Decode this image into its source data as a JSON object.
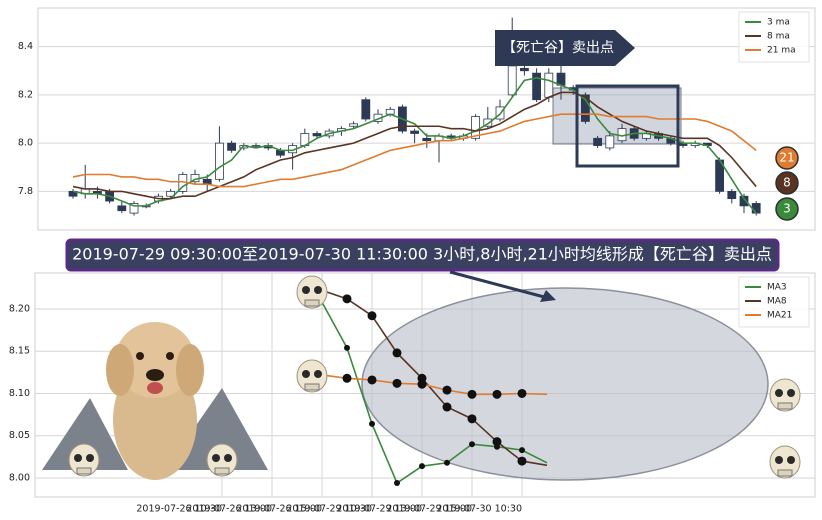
{
  "chart_data": [
    {
      "type": "candlestick",
      "xlim": [
        -2.87,
        60.82
      ],
      "ylim": [
        7.64,
        8.56
      ],
      "yticks": [
        7.8,
        {
          "value": 8.0,
          "label": "8.0"
        },
        8.2,
        8.4
      ],
      "grid": true,
      "legend": "upper right",
      "annotation": "【死亡谷】卖出点",
      "up_color": "#ffffff",
      "down_color": "#2d3a55",
      "open": [
        7.8,
        7.79,
        7.8,
        7.8,
        7.74,
        7.71,
        7.74,
        7.76,
        7.78,
        7.8,
        7.84,
        7.85,
        7.85,
        8.0,
        7.98,
        7.99,
        7.99,
        7.97,
        7.96,
        7.99,
        8.04,
        8.03,
        8.05,
        8.07,
        8.18,
        8.09,
        8.12,
        8.15,
        8.05,
        8.02,
        8.01,
        8.03,
        8.02,
        8.02,
        8.07,
        8.1,
        8.2,
        8.31,
        8.29,
        8.19,
        8.29,
        8.23,
        8.2,
        8.02,
        7.98,
        8.01,
        8.06,
        8.02,
        8.04,
        8.02,
        8.0,
        7.99,
        8.0,
        7.93,
        7.8,
        7.78,
        7.75
      ],
      "high": [
        7.81,
        7.91,
        7.82,
        7.81,
        7.76,
        7.76,
        7.75,
        7.79,
        7.81,
        7.88,
        7.89,
        7.87,
        8.07,
        8.01,
        8.0,
        8.0,
        8.0,
        7.98,
        8.0,
        8.06,
        8.05,
        8.06,
        8.07,
        8.09,
        8.19,
        8.14,
        8.15,
        8.16,
        8.06,
        8.04,
        8.04,
        8.04,
        8.04,
        8.12,
        8.15,
        8.18,
        8.52,
        8.42,
        8.31,
        8.31,
        8.32,
        8.24,
        8.21,
        8.03,
        8.05,
        8.08,
        8.07,
        8.05,
        8.05,
        8.03,
        8.01,
        8.01,
        8.0,
        7.94,
        7.81,
        7.79,
        7.76
      ],
      "low": [
        7.77,
        7.77,
        7.77,
        7.75,
        7.71,
        7.7,
        7.73,
        7.75,
        7.77,
        7.79,
        7.83,
        7.8,
        7.84,
        7.96,
        7.97,
        7.98,
        7.97,
        7.94,
        7.89,
        7.98,
        8.02,
        8.02,
        8.03,
        8.06,
        8.09,
        8.08,
        8.11,
        8.04,
        8.0,
        7.98,
        7.92,
        8.01,
        8.01,
        8.01,
        8.06,
        8.09,
        8.19,
        8.28,
        8.17,
        8.17,
        8.18,
        8.2,
        8.08,
        7.98,
        7.97,
        8.0,
        8.01,
        8.01,
        8.01,
        7.99,
        7.98,
        7.98,
        7.98,
        7.79,
        7.75,
        7.71,
        7.7
      ],
      "close": [
        7.78,
        7.81,
        7.79,
        7.76,
        7.72,
        7.75,
        7.74,
        7.78,
        7.8,
        7.87,
        7.87,
        7.83,
        8.0,
        7.97,
        7.99,
        7.99,
        7.98,
        7.95,
        7.99,
        8.04,
        8.03,
        8.05,
        8.06,
        8.08,
        8.1,
        8.12,
        8.14,
        8.05,
        8.04,
        8.01,
        8.03,
        8.02,
        8.03,
        8.11,
        8.1,
        8.15,
        8.32,
        8.3,
        8.18,
        8.29,
        8.24,
        8.22,
        8.09,
        7.99,
        8.03,
        8.06,
        8.02,
        8.04,
        8.02,
        8.0,
        7.99,
        8.0,
        7.99,
        7.8,
        7.77,
        7.74,
        7.71
      ],
      "series": [
        {
          "name": "3 ma",
          "color": "#3a8a3c",
          "end_label": "3",
          "values": [
            7.8,
            7.79,
            7.79,
            7.78,
            7.76,
            7.74,
            7.74,
            7.76,
            7.77,
            7.82,
            7.85,
            7.86,
            7.9,
            7.93,
            7.99,
            7.98,
            7.99,
            7.97,
            7.97,
            7.99,
            8.02,
            8.04,
            8.05,
            8.06,
            8.08,
            8.1,
            8.12,
            8.1,
            8.08,
            8.03,
            8.03,
            8.02,
            8.03,
            8.05,
            8.08,
            8.12,
            8.19,
            8.26,
            8.27,
            8.26,
            8.24,
            8.22,
            8.18,
            8.1,
            8.04,
            8.03,
            8.04,
            8.04,
            8.03,
            8.02,
            8.0,
            8.0,
            7.99,
            7.93,
            7.85,
            7.77,
            7.71
          ]
        },
        {
          "name": "8 ma",
          "color": "#5a3322",
          "end_label": "8",
          "values": [
            7.82,
            7.81,
            7.81,
            7.8,
            7.8,
            7.79,
            7.78,
            7.77,
            7.77,
            7.78,
            7.78,
            7.8,
            7.82,
            7.84,
            7.86,
            7.89,
            7.91,
            7.93,
            7.94,
            7.96,
            7.97,
            7.98,
            7.99,
            8.0,
            8.02,
            8.04,
            8.06,
            8.07,
            8.07,
            8.07,
            8.07,
            8.06,
            8.06,
            8.05,
            8.06,
            8.08,
            8.11,
            8.14,
            8.16,
            8.19,
            8.21,
            8.21,
            8.19,
            8.15,
            8.12,
            8.09,
            8.07,
            8.05,
            8.04,
            8.03,
            8.02,
            8.02,
            8.02,
            7.99,
            7.94,
            7.88,
            7.82
          ]
        },
        {
          "name": "21 ma",
          "color": "#e07b30",
          "end_label": "21",
          "values": [
            7.86,
            7.87,
            7.87,
            7.87,
            7.86,
            7.86,
            7.85,
            7.85,
            7.84,
            7.84,
            7.83,
            7.83,
            7.82,
            7.82,
            7.82,
            7.83,
            7.84,
            7.85,
            7.85,
            7.86,
            7.87,
            7.88,
            7.89,
            7.91,
            7.93,
            7.95,
            7.97,
            7.98,
            7.99,
            8.0,
            8.01,
            8.01,
            8.02,
            8.03,
            8.04,
            8.05,
            8.07,
            8.09,
            8.1,
            8.11,
            8.12,
            8.12,
            8.12,
            8.12,
            8.11,
            8.11,
            8.11,
            8.11,
            8.1,
            8.1,
            8.1,
            8.1,
            8.09,
            8.07,
            8.05,
            8.01,
            7.97
          ]
        }
      ]
    },
    {
      "type": "line",
      "title": "2019-07-29 09:30:00至2019-07-30 11:30:00 3小时,8小时,21小时均线形成【死亡谷】卖出点",
      "x": [
        0,
        1,
        2,
        3,
        4,
        5,
        6,
        7,
        8,
        9
      ],
      "xlim": [
        -11.48,
        19.72
      ],
      "xticks": [
        {
          "value": -4,
          "label": "2019-07-26 10:30"
        },
        {
          "value": -2,
          "label": "2019-07-26 13:00"
        },
        {
          "value": 0,
          "label": "2019-07-26 15:00"
        },
        {
          "value": 2,
          "label": "2019-07-29 10:30"
        },
        {
          "value": 4,
          "label": "2019-07-29 13:00"
        },
        {
          "value": 6,
          "label": "2019-07-29 15:00"
        },
        {
          "value": 8,
          "label": "2019-07-30 10:30"
        }
      ],
      "ylim": [
        7.9775,
        8.2426
      ],
      "yticks": [
        {
          "value": 8.0,
          "label": "8.00"
        },
        8.05,
        {
          "value": 8.1,
          "label": "8.10"
        },
        8.15,
        {
          "value": 8.2,
          "label": "8.20"
        }
      ],
      "grid": true,
      "legend": "upper right",
      "series": [
        {
          "name": "MA3",
          "color": "#3a8a3c",
          "values": [
            8.208,
            8.154,
            8.064,
            7.994,
            8.014,
            8.018,
            8.04,
            8.037,
            8.033,
            8.018
          ]
        },
        {
          "name": "MA8",
          "color": "#5a3322",
          "values": [
            8.222,
            8.212,
            8.192,
            8.148,
            8.118,
            8.084,
            8.07,
            8.043,
            8.02,
            8.015
          ]
        },
        {
          "name": "MA21",
          "color": "#e07b30",
          "values": [
            8.122,
            8.118,
            8.116,
            8.112,
            8.111,
            8.104,
            8.099,
            8.099,
            8.1,
            8.099
          ]
        }
      ]
    }
  ]
}
